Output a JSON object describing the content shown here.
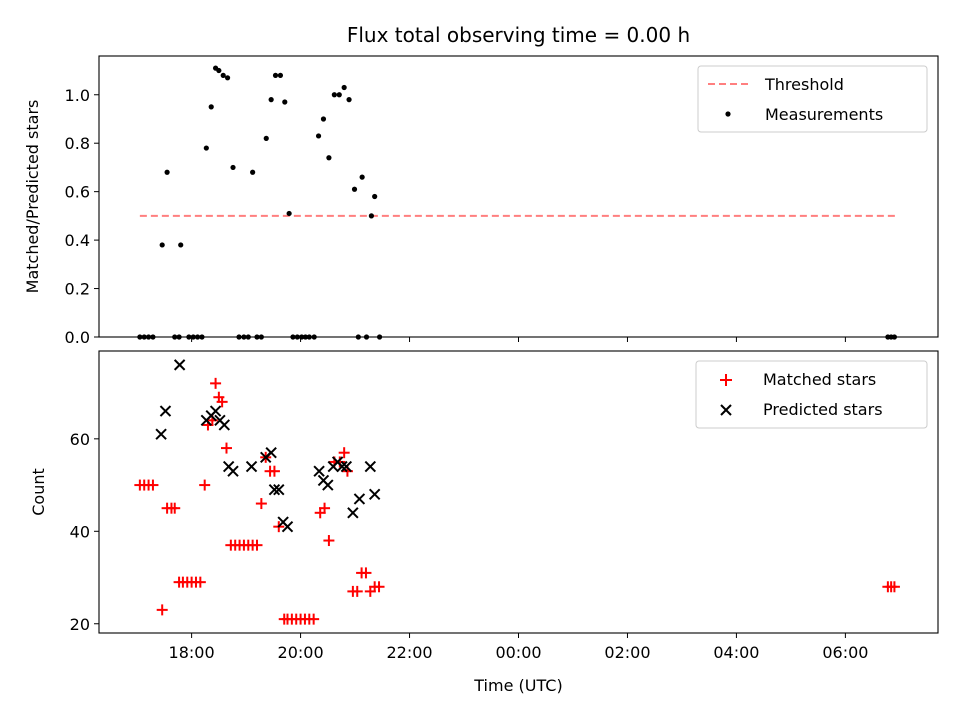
{
  "chart_data": [
    {
      "type": "scatter",
      "title": "Flux total observing time = 0.00 h",
      "ylabel": "Matched/Predicted stars",
      "ylim": [
        0,
        1.16
      ],
      "yticks": [
        0.0,
        0.2,
        0.4,
        0.6,
        0.8,
        1.0
      ],
      "ytick_labels": [
        "0.0",
        "0.2",
        "0.4",
        "0.6",
        "0.8",
        "1.0"
      ],
      "xlim_hours": [
        16.3,
        31.7
      ],
      "legend_position": "top-right",
      "threshold": {
        "name": "Threshold",
        "value": 0.5,
        "x_start": 17.05,
        "x_end": 30.95,
        "color": "#ff7f7f"
      },
      "series": [
        {
          "name": "Measurements",
          "color": "#000000",
          "x": [
            17.46,
            17.55,
            17.8,
            18.27,
            18.36,
            18.44,
            18.5,
            18.58,
            18.66,
            18.76,
            19.12,
            19.37,
            19.46,
            19.54,
            19.63,
            19.71,
            19.79,
            20.33,
            20.42,
            20.52,
            20.62,
            20.71,
            20.8,
            20.89,
            20.99,
            21.13,
            21.3,
            21.36,
            17.05,
            17.13,
            17.21,
            17.29,
            17.69,
            17.77,
            17.95,
            18.03,
            18.11,
            18.19,
            18.87,
            18.96,
            19.04,
            19.2,
            19.28,
            19.86,
            19.94,
            20.02,
            20.09,
            20.16,
            20.25,
            21.06,
            21.21,
            21.45,
            30.78,
            30.84,
            30.9
          ],
          "y": [
            0.38,
            0.68,
            0.38,
            0.78,
            0.95,
            1.11,
            1.1,
            1.08,
            1.07,
            0.7,
            0.68,
            0.82,
            0.98,
            1.08,
            1.08,
            0.97,
            0.51,
            0.83,
            0.9,
            0.74,
            1.0,
            1.0,
            1.03,
            0.98,
            0.61,
            0.66,
            0.5,
            0.58,
            0,
            0,
            0,
            0,
            0,
            0,
            0,
            0,
            0,
            0,
            0,
            0,
            0,
            0,
            0,
            0,
            0,
            0,
            0,
            0,
            0,
            0,
            0,
            0,
            0,
            0,
            0
          ]
        }
      ]
    },
    {
      "type": "scatter",
      "xlabel": "Time (UTC)",
      "ylabel": "Count",
      "ylim": [
        18,
        79
      ],
      "yticks": [
        20,
        40,
        60
      ],
      "ytick_labels": [
        "20",
        "40",
        "60"
      ],
      "xlim_hours": [
        16.3,
        31.7
      ],
      "xticks_hours": [
        18,
        20,
        22,
        24,
        26,
        28,
        30
      ],
      "xtick_labels": [
        "18:00",
        "20:00",
        "22:00",
        "00:00",
        "02:00",
        "04:00",
        "06:00"
      ],
      "legend_position": "top-right",
      "series": [
        {
          "name": "Matched stars",
          "marker": "plus",
          "color": "#ff0000",
          "x": [
            17.05,
            17.13,
            17.21,
            17.29,
            17.46,
            17.55,
            17.63,
            17.69,
            17.77,
            17.84,
            17.92,
            18.0,
            18.08,
            18.16,
            18.24,
            18.3,
            18.38,
            18.44,
            18.5,
            18.56,
            18.64,
            18.72,
            18.8,
            18.88,
            18.96,
            19.04,
            19.12,
            19.2,
            19.28,
            19.36,
            19.44,
            19.52,
            19.6,
            19.7,
            19.76,
            19.84,
            19.92,
            20.0,
            20.08,
            20.16,
            20.24,
            20.36,
            20.44,
            20.52,
            20.62,
            20.72,
            20.8,
            20.86,
            20.96,
            21.04,
            21.12,
            21.2,
            21.28,
            21.36,
            21.44,
            30.78,
            30.84,
            30.9
          ],
          "y": [
            50,
            50,
            50,
            50,
            23,
            45,
            45,
            45,
            29,
            29,
            29,
            29,
            29,
            29,
            50,
            63,
            64,
            72,
            69,
            68,
            58,
            37,
            37,
            37,
            37,
            37,
            37,
            37,
            46,
            56,
            53,
            53,
            41,
            21,
            21,
            21,
            21,
            21,
            21,
            21,
            21,
            44,
            45,
            38,
            55,
            55,
            57,
            53,
            27,
            27,
            31,
            31,
            27,
            28,
            28,
            28,
            28,
            28
          ]
        },
        {
          "name": "Predicted stars",
          "marker": "x",
          "color": "#000000",
          "x": [
            17.44,
            17.52,
            17.78,
            18.27,
            18.36,
            18.44,
            18.52,
            18.6,
            18.68,
            18.76,
            19.1,
            19.36,
            19.46,
            19.52,
            19.6,
            19.68,
            19.76,
            20.34,
            20.42,
            20.5,
            20.6,
            20.68,
            20.76,
            20.84,
            20.96,
            21.08,
            21.28,
            21.36
          ],
          "y": [
            61,
            66,
            76,
            64,
            65,
            66,
            64,
            63,
            54,
            53,
            54,
            56,
            57,
            49,
            49,
            42,
            41,
            53,
            51,
            50,
            54,
            55,
            54,
            54,
            44,
            47,
            54,
            48
          ]
        }
      ]
    }
  ]
}
